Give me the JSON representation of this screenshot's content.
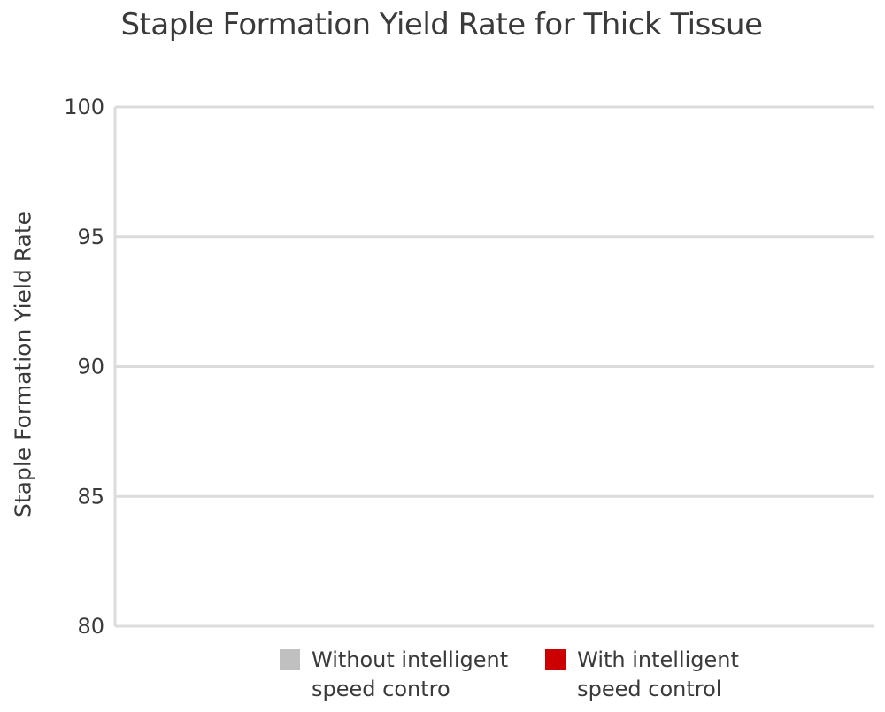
{
  "chart_data": {
    "type": "bar",
    "title": "Staple Formation Yield Rate for Thick Tissue",
    "xlabel": "",
    "ylabel": "Staple Formation Yield Rate",
    "ylim": [
      80,
      100
    ],
    "yticks": [
      100,
      95,
      90,
      85,
      80
    ],
    "grid": true,
    "legend_position": "bottom",
    "categories": [],
    "series": [
      {
        "name": "Without intelligent\nspeed contro",
        "color": "#c0c0c0",
        "values": []
      },
      {
        "name": "With intelligent\nspeed control",
        "color": "#cc0000",
        "values": []
      }
    ]
  }
}
